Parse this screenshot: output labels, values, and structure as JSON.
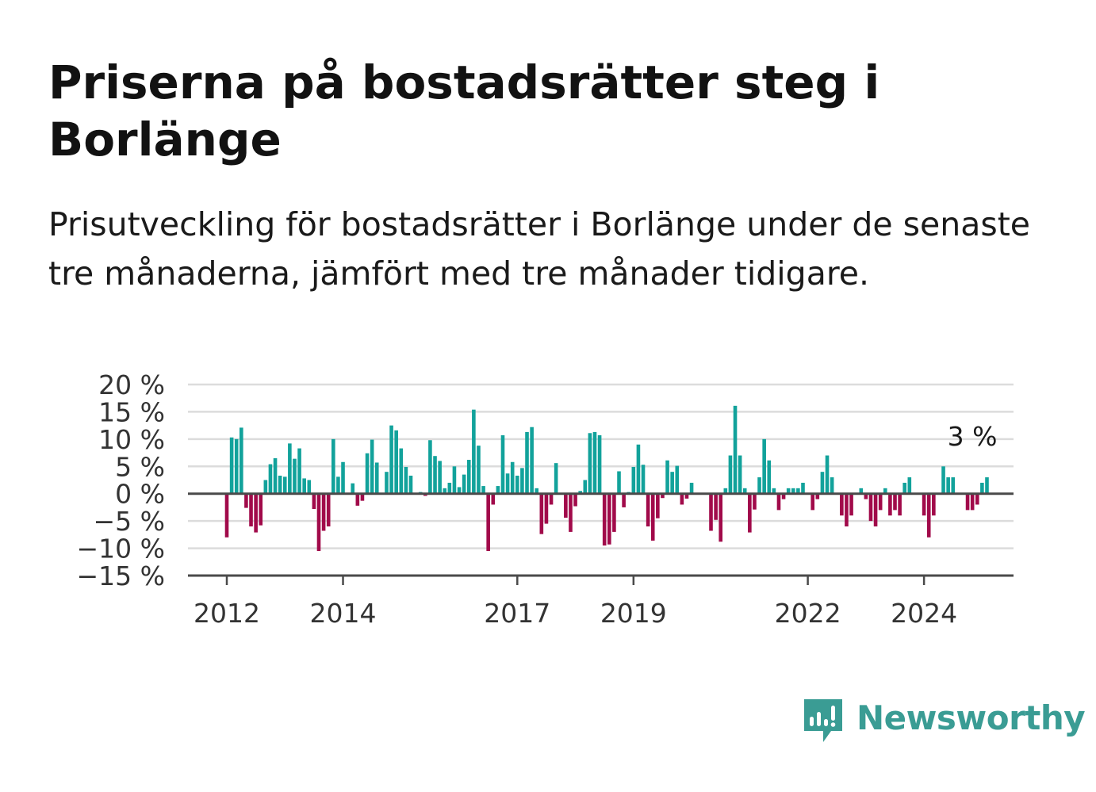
{
  "title": "Priserna på bostadsrätter steg i Borlänge",
  "subtitle": "Prisutveckling för bostadsrätter i Borlänge under de senaste tre månaderna, jämfört med tre månader tidigare.",
  "brand": {
    "name": "Newsworthy",
    "color": "#3a9c94",
    "icon": "newsworthy-logo-icon"
  },
  "colors": {
    "positive": "#12a29b",
    "negative": "#a10a4a",
    "grid": "#dcdcdc",
    "axis": "#4a4a4a"
  },
  "chart_data": {
    "type": "bar",
    "unit": "%",
    "y_ticks": [
      "20 %",
      "15 %",
      "10 %",
      "5 %",
      "0 %",
      "−5 %",
      "−10 %",
      "−15 %"
    ],
    "ylim": [
      -15,
      20
    ],
    "x_ticks": [
      {
        "label": "2012",
        "index": 0
      },
      {
        "label": "2014",
        "index": 24
      },
      {
        "label": "2017",
        "index": 60
      },
      {
        "label": "2019",
        "index": 84
      },
      {
        "label": "2022",
        "index": 120
      },
      {
        "label": "2024",
        "index": 144
      }
    ],
    "start": "2012-01",
    "values": [
      -8,
      10.3,
      10,
      12.1,
      -2.6,
      -6,
      -7.1,
      -5.8,
      2.5,
      5.4,
      6.5,
      3.3,
      3.1,
      9.2,
      6.4,
      8.3,
      2.8,
      2.5,
      -2.8,
      -10.5,
      -6.8,
      -6,
      10,
      3.1,
      5.8,
      0,
      1.9,
      -2.2,
      -1.3,
      7.4,
      9.9,
      5.7,
      0,
      4,
      12.5,
      11.6,
      8.3,
      4.9,
      3.3,
      0,
      0.3,
      -0.4,
      9.8,
      6.9,
      6,
      1,
      2,
      5,
      1.2,
      3.5,
      6.2,
      15.4,
      8.8,
      1.4,
      -10.5,
      -2,
      1.4,
      10.7,
      3.7,
      5.8,
      3.3,
      4.7,
      11.3,
      12.2,
      1,
      -7.4,
      -5.5,
      -2,
      5.6,
      0,
      -4.4,
      -7,
      -2.3,
      0.5,
      2.5,
      11.1,
      11.3,
      10.7,
      -9.5,
      -9.3,
      -7,
      4.1,
      -2.5,
      0.3,
      4.9,
      9,
      5.3,
      -6,
      -8.6,
      -4.5,
      -0.8,
      6.1,
      4,
      5.1,
      -2,
      -0.9,
      2,
      0,
      0,
      0,
      -6.8,
      -4.8,
      -8.8,
      1,
      7,
      16.1,
      7,
      1,
      -7.1,
      -2.9,
      3,
      10,
      6.1,
      1,
      -3,
      -1,
      1,
      1,
      1,
      2,
      0,
      -3,
      -1,
      4,
      7,
      3,
      0,
      -4,
      -6,
      -4,
      0,
      1,
      -1,
      -5,
      -6,
      -3,
      1,
      -4,
      -3,
      -4,
      2,
      3,
      0,
      0,
      -4,
      -8,
      -4,
      0,
      5,
      3,
      3,
      0,
      0,
      -3,
      -3,
      -2,
      2,
      3
    ],
    "annotation": {
      "text": "3 %",
      "index": 157
    }
  }
}
